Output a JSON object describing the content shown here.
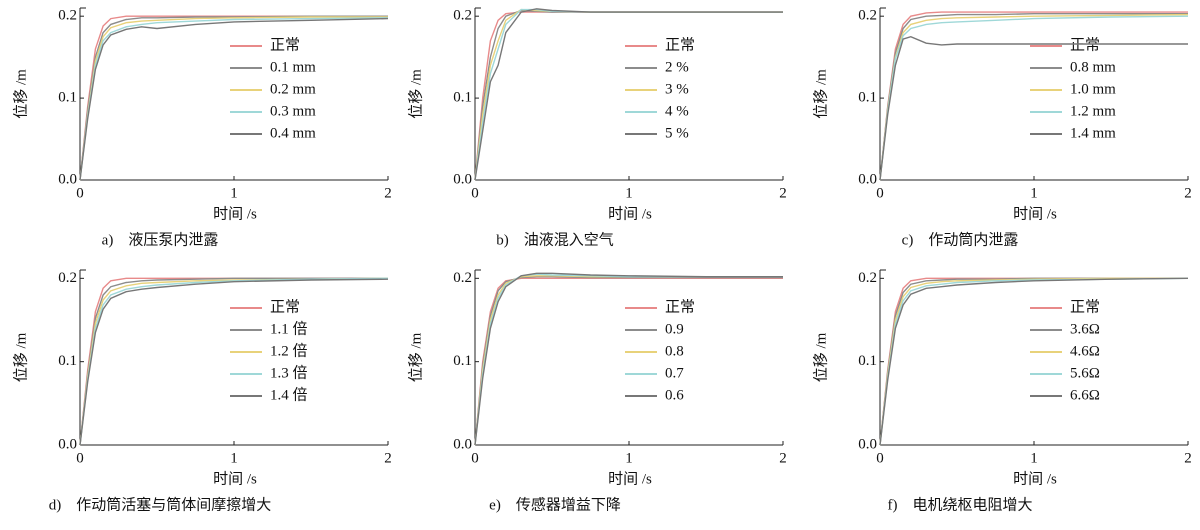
{
  "chart_data": [
    {
      "type": "line",
      "title": "a)　液压泵内泄露",
      "xlabel": "时间 /s",
      "ylabel": "位移 /m",
      "x": [
        0,
        0.05,
        0.1,
        0.15,
        0.2,
        0.3,
        0.4,
        0.5,
        0.75,
        1,
        1.5,
        2
      ],
      "xlim": [
        0,
        2
      ],
      "ylim": [
        0,
        0.21
      ],
      "xticks": [
        0,
        1,
        2
      ],
      "yticks": [
        {
          "value": 0,
          "label": "0.0"
        },
        0.1,
        0.2
      ],
      "series": [
        {
          "name": "正常",
          "color": "#e88a8a",
          "values": [
            0,
            0.09,
            0.16,
            0.188,
            0.197,
            0.2,
            0.2,
            0.2,
            0.2,
            0.2,
            0.2,
            0.2
          ]
        },
        {
          "name": "0.1 mm",
          "color": "#8c8c8c",
          "values": [
            0,
            0.085,
            0.15,
            0.18,
            0.19,
            0.196,
            0.198,
            0.198,
            0.199,
            0.199,
            0.2,
            0.2
          ]
        },
        {
          "name": "0.2 mm",
          "color": "#e8d27a",
          "values": [
            0,
            0.08,
            0.145,
            0.175,
            0.186,
            0.192,
            0.194,
            0.195,
            0.197,
            0.198,
            0.199,
            0.199
          ]
        },
        {
          "name": "0.3 mm",
          "color": "#9fd8d8",
          "values": [
            0,
            0.078,
            0.14,
            0.17,
            0.18,
            0.187,
            0.19,
            0.192,
            0.194,
            0.196,
            0.197,
            0.198
          ]
        },
        {
          "name": "0.4 mm",
          "color": "#777777",
          "values": [
            0,
            0.075,
            0.135,
            0.165,
            0.177,
            0.184,
            0.187,
            0.185,
            0.19,
            0.193,
            0.195,
            0.197
          ]
        }
      ]
    },
    {
      "type": "line",
      "title": "b)　油液混入空气",
      "xlabel": "时间 /s",
      "ylabel": "位移 /m",
      "x": [
        0,
        0.05,
        0.1,
        0.15,
        0.2,
        0.3,
        0.4,
        0.5,
        0.75,
        1,
        1.5,
        2
      ],
      "xlim": [
        0,
        2
      ],
      "ylim": [
        0,
        0.21
      ],
      "xticks": [
        0,
        1,
        2
      ],
      "yticks": [
        {
          "value": 0,
          "label": "0.0"
        },
        0.1,
        0.2
      ],
      "series": [
        {
          "name": "正常",
          "color": "#e88a8a",
          "values": [
            0,
            0.1,
            0.17,
            0.195,
            0.203,
            0.205,
            0.205,
            0.205,
            0.205,
            0.205,
            0.205,
            0.205
          ]
        },
        {
          "name": "2 %",
          "color": "#8c8c8c",
          "values": [
            0,
            0.09,
            0.15,
            0.185,
            0.2,
            0.207,
            0.206,
            0.205,
            0.205,
            0.205,
            0.205,
            0.205
          ]
        },
        {
          "name": "3 %",
          "color": "#e8d27a",
          "values": [
            0,
            0.08,
            0.14,
            0.17,
            0.195,
            0.208,
            0.207,
            0.206,
            0.205,
            0.205,
            0.205,
            0.205
          ]
        },
        {
          "name": "4 %",
          "color": "#9fd8d8",
          "values": [
            0,
            0.07,
            0.13,
            0.16,
            0.19,
            0.208,
            0.208,
            0.206,
            0.205,
            0.205,
            0.205,
            0.205
          ]
        },
        {
          "name": "5 %",
          "color": "#777777",
          "values": [
            0,
            0.06,
            0.12,
            0.14,
            0.18,
            0.205,
            0.209,
            0.207,
            0.205,
            0.205,
            0.205,
            0.205
          ]
        }
      ]
    },
    {
      "type": "line",
      "title": "c)　作动筒内泄露",
      "xlabel": "时间 /s",
      "ylabel": "位移 /m",
      "x": [
        0,
        0.05,
        0.1,
        0.15,
        0.2,
        0.3,
        0.4,
        0.5,
        0.75,
        1,
        1.5,
        2
      ],
      "xlim": [
        0,
        2
      ],
      "ylim": [
        0,
        0.21
      ],
      "xticks": [
        0,
        1,
        2
      ],
      "yticks": [
        {
          "value": 0,
          "label": "0.0"
        },
        0.1,
        0.2
      ],
      "series": [
        {
          "name": "正常",
          "color": "#e88a8a",
          "values": [
            0,
            0.09,
            0.16,
            0.19,
            0.2,
            0.204,
            0.205,
            0.205,
            0.205,
            0.205,
            0.205,
            0.205
          ]
        },
        {
          "name": "0.8 mm",
          "color": "#8c8c8c",
          "values": [
            0,
            0.088,
            0.155,
            0.185,
            0.196,
            0.2,
            0.201,
            0.202,
            0.202,
            0.203,
            0.203,
            0.203
          ]
        },
        {
          "name": "1.0 mm",
          "color": "#e8d27a",
          "values": [
            0,
            0.085,
            0.15,
            0.18,
            0.19,
            0.195,
            0.197,
            0.198,
            0.199,
            0.2,
            0.201,
            0.202
          ]
        },
        {
          "name": "1.2 mm",
          "color": "#9fd8d8",
          "values": [
            0,
            0.083,
            0.148,
            0.176,
            0.185,
            0.19,
            0.192,
            0.193,
            0.195,
            0.197,
            0.199,
            0.2
          ]
        },
        {
          "name": "1.4 mm",
          "color": "#777777",
          "values": [
            0,
            0.08,
            0.14,
            0.172,
            0.175,
            0.167,
            0.165,
            0.166,
            0.166,
            0.166,
            0.166,
            0.166
          ]
        }
      ]
    },
    {
      "type": "line",
      "title": "d)　作动筒活塞与筒体间摩擦增大",
      "xlabel": "时间 /s",
      "ylabel": "位移 /m",
      "x": [
        0,
        0.05,
        0.1,
        0.15,
        0.2,
        0.3,
        0.4,
        0.5,
        0.75,
        1,
        1.5,
        2
      ],
      "xlim": [
        0,
        2
      ],
      "ylim": [
        0,
        0.21
      ],
      "xticks": [
        0,
        1,
        2
      ],
      "yticks": [
        {
          "value": 0,
          "label": "0.0"
        },
        0.1,
        0.2
      ],
      "series": [
        {
          "name": "正常",
          "color": "#e88a8a",
          "values": [
            0,
            0.09,
            0.16,
            0.188,
            0.197,
            0.2,
            0.2,
            0.2,
            0.2,
            0.2,
            0.2,
            0.2
          ]
        },
        {
          "name": "1.1 倍",
          "color": "#8c8c8c",
          "values": [
            0,
            0.085,
            0.152,
            0.18,
            0.19,
            0.195,
            0.197,
            0.198,
            0.199,
            0.2,
            0.2,
            0.2
          ]
        },
        {
          "name": "1.2 倍",
          "color": "#e8d27a",
          "values": [
            0,
            0.082,
            0.146,
            0.174,
            0.185,
            0.191,
            0.194,
            0.195,
            0.197,
            0.198,
            0.199,
            0.2
          ]
        },
        {
          "name": "1.3 倍",
          "color": "#9fd8d8",
          "values": [
            0,
            0.079,
            0.14,
            0.168,
            0.18,
            0.187,
            0.19,
            0.192,
            0.195,
            0.197,
            0.199,
            0.2
          ]
        },
        {
          "name": "1.4 倍",
          "color": "#777777",
          "values": [
            0,
            0.076,
            0.135,
            0.163,
            0.176,
            0.184,
            0.187,
            0.189,
            0.193,
            0.196,
            0.198,
            0.199
          ]
        }
      ]
    },
    {
      "type": "line",
      "title": "e)　传感器增益下降",
      "xlabel": "时间 /s",
      "ylabel": "位移 /m",
      "x": [
        0,
        0.05,
        0.1,
        0.15,
        0.2,
        0.3,
        0.4,
        0.5,
        0.75,
        1,
        1.5,
        2
      ],
      "xlim": [
        0,
        2
      ],
      "ylim": [
        0,
        0.21
      ],
      "xticks": [
        0,
        1,
        2
      ],
      "yticks": [
        {
          "value": 0,
          "label": "0.0"
        },
        0.1,
        0.2
      ],
      "series": [
        {
          "name": "正常",
          "color": "#e88a8a",
          "values": [
            0,
            0.1,
            0.16,
            0.188,
            0.197,
            0.2,
            0.2,
            0.2,
            0.2,
            0.2,
            0.2,
            0.2
          ]
        },
        {
          "name": "0.9",
          "color": "#8c8c8c",
          "values": [
            0,
            0.095,
            0.155,
            0.185,
            0.196,
            0.201,
            0.202,
            0.202,
            0.201,
            0.201,
            0.201,
            0.201
          ]
        },
        {
          "name": "0.8",
          "color": "#e8d27a",
          "values": [
            0,
            0.09,
            0.15,
            0.18,
            0.194,
            0.202,
            0.203,
            0.203,
            0.202,
            0.202,
            0.202,
            0.202
          ]
        },
        {
          "name": "0.7",
          "color": "#9fd8d8",
          "values": [
            0,
            0.085,
            0.145,
            0.176,
            0.192,
            0.203,
            0.205,
            0.204,
            0.203,
            0.202,
            0.202,
            0.202
          ]
        },
        {
          "name": "0.6",
          "color": "#777777",
          "values": [
            0,
            0.08,
            0.14,
            0.172,
            0.19,
            0.203,
            0.206,
            0.206,
            0.204,
            0.203,
            0.202,
            0.202
          ]
        }
      ]
    },
    {
      "type": "line",
      "title": "f)　电机绕枢电阻增大",
      "xlabel": "时间 /s",
      "ylabel": "位移 /m",
      "x": [
        0,
        0.05,
        0.1,
        0.15,
        0.2,
        0.3,
        0.4,
        0.5,
        0.75,
        1,
        1.5,
        2
      ],
      "xlim": [
        0,
        2
      ],
      "ylim": [
        0,
        0.21
      ],
      "xticks": [
        0,
        1,
        2
      ],
      "yticks": [
        {
          "value": 0,
          "label": "0.0"
        },
        0.1,
        0.2
      ],
      "series": [
        {
          "name": "正常",
          "color": "#e88a8a",
          "values": [
            0,
            0.09,
            0.16,
            0.188,
            0.197,
            0.2,
            0.2,
            0.2,
            0.2,
            0.2,
            0.2,
            0.2
          ]
        },
        {
          "name": "3.6Ω",
          "color": "#8c8c8c",
          "values": [
            0,
            0.087,
            0.155,
            0.183,
            0.193,
            0.197,
            0.198,
            0.199,
            0.199,
            0.2,
            0.2,
            0.2
          ]
        },
        {
          "name": "4.6Ω",
          "color": "#e8d27a",
          "values": [
            0,
            0.084,
            0.15,
            0.178,
            0.189,
            0.194,
            0.196,
            0.197,
            0.198,
            0.199,
            0.2,
            0.2
          ]
        },
        {
          "name": "5.6Ω",
          "color": "#9fd8d8",
          "values": [
            0,
            0.081,
            0.145,
            0.173,
            0.185,
            0.191,
            0.193,
            0.195,
            0.197,
            0.198,
            0.199,
            0.2
          ]
        },
        {
          "name": "6.6Ω",
          "color": "#777777",
          "values": [
            0,
            0.078,
            0.14,
            0.168,
            0.181,
            0.188,
            0.19,
            0.192,
            0.195,
            0.197,
            0.199,
            0.2
          ]
        }
      ]
    }
  ]
}
